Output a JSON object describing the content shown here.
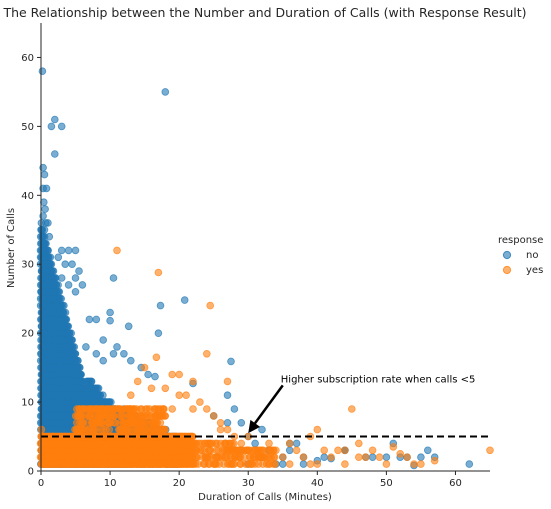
{
  "chart_data": {
    "type": "scatter",
    "title": "The Relationship between the Number and Duration of Calls (with Response Result)",
    "xlabel": "Duration of Calls (Minutes)",
    "ylabel": "Number of Calls",
    "xlim": [
      0,
      65
    ],
    "ylim": [
      0,
      65
    ],
    "xticks": [
      0,
      10,
      20,
      30,
      40,
      50,
      60
    ],
    "yticks": [
      0,
      10,
      20,
      30,
      40,
      50,
      60
    ],
    "grid": false,
    "legend": {
      "title": "response",
      "placement": "right",
      "entries": [
        "no",
        "yes"
      ]
    },
    "series": [
      {
        "name": "no",
        "color": "#1f77b4",
        "points": [
          [
            0.2,
            58
          ],
          [
            2,
            51
          ],
          [
            1.5,
            50
          ],
          [
            3,
            50
          ],
          [
            2,
            46
          ],
          [
            18,
            55
          ],
          [
            0.3,
            44
          ],
          [
            0.5,
            43
          ],
          [
            0.3,
            41
          ],
          [
            0.8,
            41
          ],
          [
            0.4,
            39
          ],
          [
            0.6,
            38
          ],
          [
            0.3,
            37
          ],
          [
            0.7,
            36
          ],
          [
            1,
            36
          ],
          [
            0.5,
            35
          ],
          [
            1.2,
            34
          ],
          [
            0.4,
            33
          ],
          [
            3,
            32
          ],
          [
            4,
            32
          ],
          [
            5,
            32
          ],
          [
            2.5,
            31
          ],
          [
            3.5,
            30
          ],
          [
            4.5,
            30
          ],
          [
            5.5,
            29
          ],
          [
            5,
            28
          ],
          [
            3,
            28
          ],
          [
            6,
            27
          ],
          [
            4,
            27
          ],
          [
            5,
            26
          ],
          [
            10.5,
            28
          ],
          [
            20.8,
            24.8
          ],
          [
            17.3,
            24
          ],
          [
            10,
            23
          ],
          [
            7,
            22
          ],
          [
            8,
            22
          ],
          [
            10,
            21.8
          ],
          [
            12.7,
            21
          ],
          [
            17,
            20
          ],
          [
            9,
            19
          ],
          [
            11,
            18
          ],
          [
            6.5,
            18
          ],
          [
            8,
            17
          ],
          [
            9,
            16
          ],
          [
            10.5,
            17
          ],
          [
            12,
            17
          ],
          [
            13,
            16
          ],
          [
            14.5,
            15
          ],
          [
            15.5,
            14
          ],
          [
            16.5,
            13.7
          ],
          [
            27.5,
            15.9
          ],
          [
            22,
            12.7
          ],
          [
            27,
            11
          ],
          [
            28,
            9
          ],
          [
            25,
            8
          ],
          [
            27,
            7
          ],
          [
            29,
            7
          ],
          [
            32,
            6
          ],
          [
            31,
            4
          ],
          [
            33,
            3
          ],
          [
            36,
            4
          ],
          [
            37,
            4
          ],
          [
            35,
            2
          ],
          [
            38,
            2
          ],
          [
            40,
            1.5
          ],
          [
            41,
            2
          ],
          [
            42,
            1.8
          ],
          [
            44,
            3
          ],
          [
            48,
            2
          ],
          [
            50,
            2
          ],
          [
            51,
            4
          ],
          [
            53,
            2
          ],
          [
            54,
            0.8
          ],
          [
            56,
            3
          ],
          [
            57,
            2
          ],
          [
            62,
            1
          ],
          [
            29,
            3
          ],
          [
            30,
            5
          ],
          [
            32,
            2
          ],
          [
            34,
            1
          ],
          [
            35,
            1
          ],
          [
            36,
            3
          ],
          [
            38,
            1
          ],
          [
            30,
            1
          ],
          [
            44,
            3
          ],
          [
            47,
            2
          ],
          [
            52,
            2
          ],
          [
            55,
            2
          ]
        ]
      },
      {
        "name": "yes",
        "color": "#ff7f0e",
        "points": [
          [
            11,
            32
          ],
          [
            17,
            28.8
          ],
          [
            24.5,
            24
          ],
          [
            24,
            17
          ],
          [
            16.7,
            16.5
          ],
          [
            20,
            14
          ],
          [
            27,
            13
          ],
          [
            18,
            12
          ],
          [
            21,
            11
          ],
          [
            23,
            10
          ],
          [
            24,
            9
          ],
          [
            25,
            8
          ],
          [
            26,
            7
          ],
          [
            27,
            6
          ],
          [
            28,
            5
          ],
          [
            29,
            4
          ],
          [
            30,
            5
          ],
          [
            31,
            3
          ],
          [
            32,
            2
          ],
          [
            33,
            4
          ],
          [
            34,
            3
          ],
          [
            35,
            2
          ],
          [
            36,
            4
          ],
          [
            37,
            3
          ],
          [
            38,
            2
          ],
          [
            39,
            5
          ],
          [
            40,
            6
          ],
          [
            41,
            3
          ],
          [
            42,
            2
          ],
          [
            43,
            3
          ],
          [
            44,
            3
          ],
          [
            45,
            9
          ],
          [
            46,
            4
          ],
          [
            47,
            2
          ],
          [
            48,
            3
          ],
          [
            49,
            2
          ],
          [
            51,
            3.5
          ],
          [
            52,
            2.5
          ],
          [
            53,
            2
          ],
          [
            54,
            1
          ],
          [
            55,
            1
          ],
          [
            57,
            1.5
          ],
          [
            65,
            3
          ],
          [
            39,
            1
          ],
          [
            40,
            1
          ],
          [
            44,
            1
          ],
          [
            46,
            2
          ],
          [
            50,
            1
          ],
          [
            15,
            15
          ],
          [
            19,
            14
          ],
          [
            22,
            13
          ],
          [
            20,
            11
          ],
          [
            22,
            9
          ],
          [
            14,
            13
          ],
          [
            16,
            12
          ],
          [
            13,
            11
          ],
          [
            19,
            9
          ],
          [
            18,
            8
          ],
          [
            26,
            6
          ],
          [
            30,
            3
          ],
          [
            33,
            2
          ],
          [
            36,
            1
          ],
          [
            31,
            1
          ],
          [
            28,
            1
          ]
        ]
      }
    ],
    "dense_regions": [
      {
        "series": "no",
        "x_range": [
          0,
          6.5
        ],
        "y_min": 1,
        "y_max_at_left": 36,
        "y_max_at_right": 12,
        "weight": 1.5
      },
      {
        "series": "no",
        "x_range": [
          6.5,
          12
        ],
        "y_min": 1,
        "y_max_at_left": 14,
        "y_max_at_right": 8,
        "weight": 0.9
      },
      {
        "series": "no",
        "x_range": [
          12,
          20
        ],
        "y_min": 1,
        "y_max_at_left": 9,
        "y_max_at_right": 5,
        "weight": 0.6
      },
      {
        "series": "yes",
        "x_range": [
          0,
          22
        ],
        "y_min": 1,
        "y_max_at_left": 6,
        "y_max_at_right": 5,
        "weight": 1.2
      },
      {
        "series": "yes",
        "x_range": [
          5,
          18
        ],
        "y_min": 5,
        "y_max_at_left": 10,
        "y_max_at_right": 9,
        "weight": 0.5
      },
      {
        "series": "yes",
        "x_range": [
          22,
          34
        ],
        "y_min": 1,
        "y_max_at_left": 5,
        "y_max_at_right": 3,
        "weight": 0.4
      }
    ],
    "reference_line": {
      "y": 5,
      "style": "dashed",
      "color": "#000000"
    },
    "annotation": {
      "text": "Higher subscription rate when calls <5",
      "arrow_to": [
        30,
        5.5
      ],
      "text_at": [
        35,
        13
      ]
    }
  }
}
